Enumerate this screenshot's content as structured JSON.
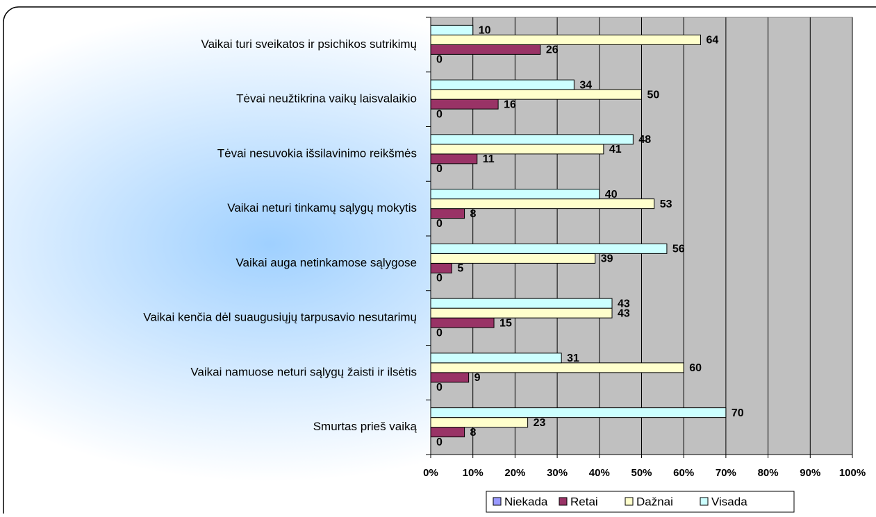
{
  "chart_data": {
    "type": "bar",
    "orientation": "horizontal",
    "categories": [
      "Vaikai turi sveikatos ir psichikos sutrikimų",
      "Tėvai neužtikrina vaikų laisvalaikio",
      "Tėvai nesuvokia išsilavinimo reikšmės",
      "Vaikai neturi tinkamų sąlygų mokytis",
      "Vaikai auga netinkamose sąlygose",
      "Vaikai  kenčia dėl suaugusiųjų tarpusavio nesutarimų",
      "Vaikai namuose neturi sąlygų žaisti ir ilsėtis",
      "Smurtas prieš vaiką"
    ],
    "series": [
      {
        "name": "Niekada",
        "color": "#9999ff",
        "values": [
          0,
          0,
          0,
          0,
          0,
          0,
          0,
          0
        ]
      },
      {
        "name": "Retai",
        "color": "#993366",
        "values": [
          26,
          16,
          11,
          8,
          5,
          15,
          9,
          8
        ]
      },
      {
        "name": "Dažnai",
        "color": "#ffffcc",
        "values": [
          64,
          50,
          41,
          53,
          39,
          43,
          60,
          23
        ]
      },
      {
        "name": "Visada",
        "color": "#ccffff",
        "values": [
          10,
          34,
          48,
          40,
          56,
          43,
          31,
          70
        ]
      }
    ],
    "xlim": [
      0,
      100
    ],
    "xticks": [
      {
        "value": 0,
        "label": "0%"
      },
      {
        "value": 10,
        "label": "10%"
      },
      {
        "value": 20,
        "label": "20%"
      },
      {
        "value": 30,
        "label": "30%"
      },
      {
        "value": 40,
        "label": "40%"
      },
      {
        "value": 50,
        "label": "50%"
      },
      {
        "value": 60,
        "label": "60%"
      },
      {
        "value": 70,
        "label": "70%"
      },
      {
        "value": 80,
        "label": "80%"
      },
      {
        "value": 90,
        "label": "90%"
      },
      {
        "value": 100,
        "label": "100%"
      }
    ],
    "grid": true,
    "legend": "bottom"
  }
}
